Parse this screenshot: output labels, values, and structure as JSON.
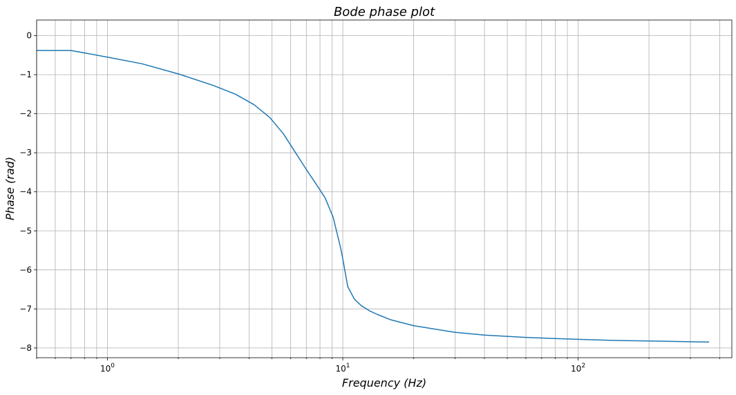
{
  "chart_data": {
    "type": "line",
    "title": "Bode phase plot",
    "xlabel": "Frequency (Hz)",
    "ylabel": "Phase (rad)",
    "xscale": "log",
    "xlim": [
      0.5,
      450
    ],
    "ylim": [
      -8.25,
      0.4
    ],
    "grid": true,
    "grid_minor_x": true,
    "x_major_ticks": [
      {
        "value": 1,
        "base": "10",
        "exp": "0"
      },
      {
        "value": 10,
        "base": "10",
        "exp": "1"
      },
      {
        "value": 100,
        "base": "10",
        "exp": "2"
      }
    ],
    "y_ticks": [
      0,
      -1,
      -2,
      -3,
      -4,
      -5,
      -6,
      -7,
      -8
    ],
    "y_tick_labels": [
      "0",
      "−1",
      "−2",
      "−3",
      "−4",
      "−5",
      "−6",
      "−7",
      "−8"
    ],
    "series": [
      {
        "color": "#1f77b4",
        "x": [
          0.5,
          0.7,
          1.0,
          1.4,
          2.0,
          2.8,
          3.5,
          4.2,
          4.9,
          5.6,
          6.3,
          7.0,
          7.7,
          8.4,
          9.1,
          9.8,
          10.0,
          10.5,
          11.2,
          12.0,
          13.0,
          14.0,
          16.0,
          20.0,
          30.0,
          40.0,
          60.0,
          80.0,
          100.0,
          150.0,
          200.0,
          300.0,
          360.0
        ],
        "y": [
          -0.38,
          -0.38,
          -0.55,
          -0.72,
          -0.98,
          -1.27,
          -1.5,
          -1.77,
          -2.1,
          -2.52,
          -3.0,
          -3.43,
          -3.8,
          -4.15,
          -4.65,
          -5.45,
          -5.72,
          -6.43,
          -6.75,
          -6.92,
          -7.05,
          -7.14,
          -7.28,
          -7.43,
          -7.6,
          -7.67,
          -7.73,
          -7.76,
          -7.78,
          -7.81,
          -7.82,
          -7.84,
          -7.85
        ]
      }
    ]
  }
}
